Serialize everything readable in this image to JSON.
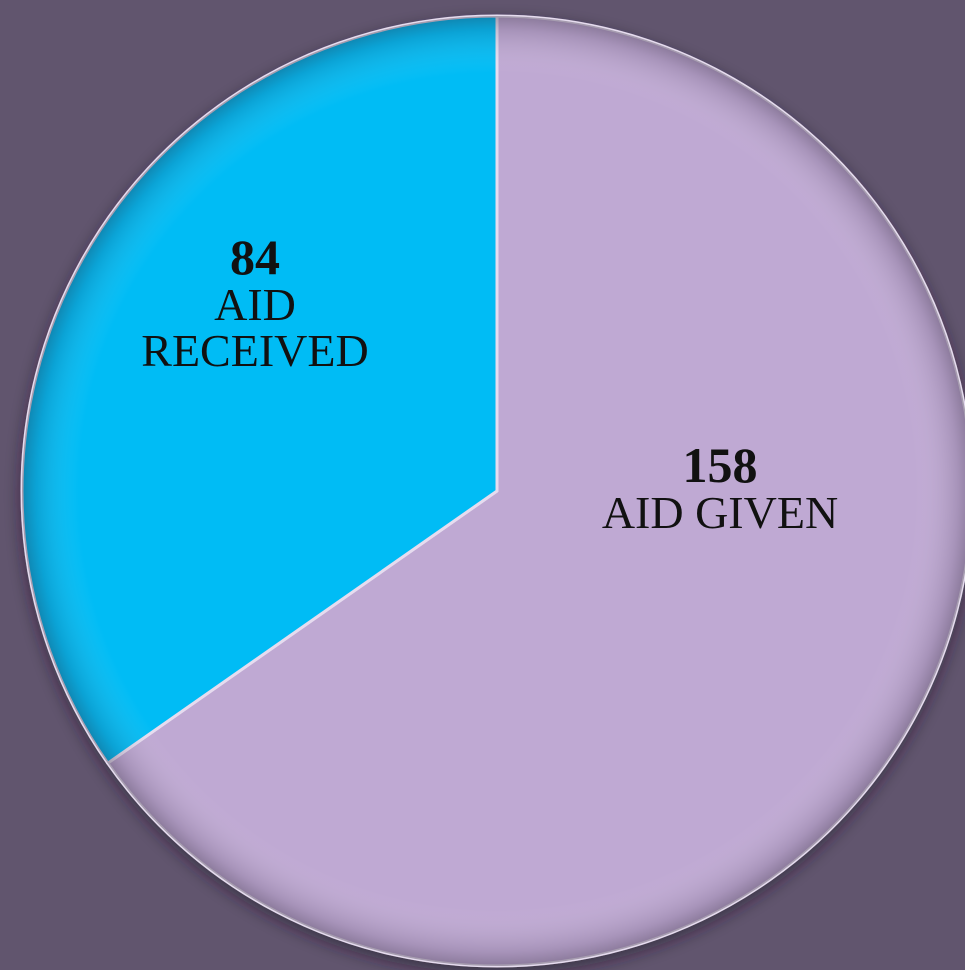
{
  "chart_data": {
    "type": "pie",
    "title": "",
    "slices": [
      {
        "label": "AID GIVEN",
        "value": 158,
        "color": "#bfa9d3"
      },
      {
        "label": "AID RECEIVED",
        "value": 84,
        "color": "#06bcf5"
      }
    ],
    "start_angle_deg": 0,
    "direction": "clockwise",
    "legend": "none"
  },
  "labels": {
    "given_value": "158",
    "given_text": "AID GIVEN",
    "received_value": "84",
    "received_text_1": "AID",
    "received_text_2": "RECEIVED"
  },
  "colors": {
    "background": "#61556e",
    "given": "#bfa9d3",
    "received": "#06bcf5",
    "edge_highlight": "#e6dcef"
  }
}
